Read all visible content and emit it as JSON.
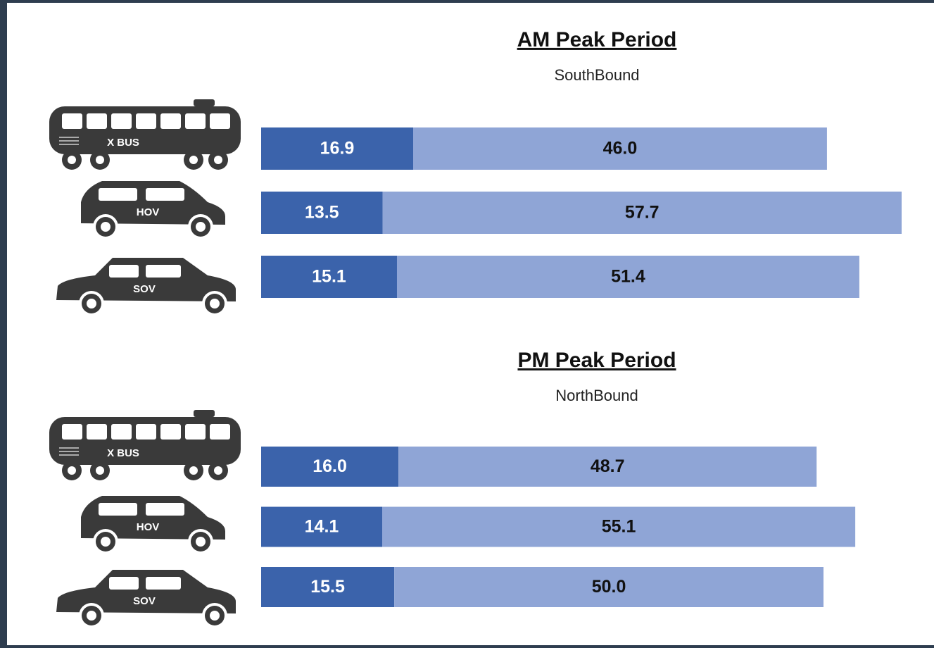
{
  "chart_data": [
    {
      "type": "stacked-bar",
      "title": "AM Peak Period",
      "subtitle": "SouthBound",
      "categories": [
        "X BUS",
        "HOV",
        "SOV"
      ],
      "series": [
        {
          "color": "#3b63ab",
          "values": [
            16.9,
            13.5,
            15.1
          ],
          "value_labels": [
            "16.9",
            "13.5",
            "15.1"
          ]
        },
        {
          "color": "#8fa5d6",
          "values": [
            46.0,
            57.7,
            51.4
          ],
          "value_labels": [
            "46.0",
            "57.7",
            "51.4"
          ]
        }
      ],
      "xlim": [
        0,
        71.2
      ]
    },
    {
      "type": "stacked-bar",
      "title": "PM Peak Period",
      "subtitle": "NorthBound",
      "categories": [
        "X BUS",
        "HOV",
        "SOV"
      ],
      "series": [
        {
          "color": "#3b63ab",
          "values": [
            16.0,
            14.1,
            15.5
          ],
          "value_labels": [
            "16.0",
            "14.1",
            "15.5"
          ]
        },
        {
          "color": "#8fa5d6",
          "values": [
            48.7,
            55.1,
            50.0
          ],
          "value_labels": [
            "48.7",
            "55.1",
            "50.0"
          ]
        }
      ],
      "xlim": [
        0,
        74.6
      ]
    }
  ]
}
